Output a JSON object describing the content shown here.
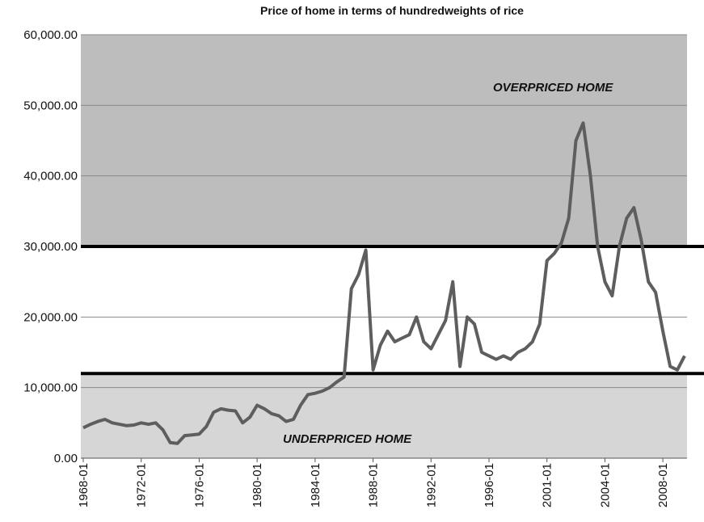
{
  "chart_data": {
    "type": "line",
    "title": "Price of home in terms of hundredweights of rice",
    "categories": [
      "1968-01",
      null,
      null,
      null,
      null,
      null,
      null,
      null,
      "1972-01",
      null,
      null,
      null,
      null,
      null,
      null,
      null,
      "1976-01",
      null,
      null,
      null,
      null,
      null,
      null,
      null,
      "1980-01",
      null,
      null,
      null,
      null,
      null,
      null,
      null,
      "1984-01",
      null,
      null,
      null,
      null,
      null,
      null,
      null,
      "1988-01",
      null,
      null,
      null,
      null,
      null,
      null,
      null,
      "1992-01",
      null,
      null,
      null,
      null,
      null,
      null,
      null,
      "1996-01",
      null,
      null,
      null,
      null,
      null,
      null,
      null,
      "2001-01",
      null,
      null,
      null,
      null,
      null,
      null,
      null,
      "2004-01",
      null,
      null,
      null,
      null,
      null,
      null,
      null,
      "2008-01",
      null,
      null,
      null
    ],
    "series": [
      {
        "color": "#5e5e5e",
        "values": [
          4300,
          4800,
          5200,
          5500,
          5000,
          4800,
          4600,
          4700,
          5000,
          4800,
          5000,
          4000,
          2200,
          2100,
          3200,
          3300,
          3400,
          4500,
          6500,
          7000,
          6800,
          6700,
          5000,
          5800,
          7500,
          7000,
          6300,
          6000,
          5200,
          5500,
          7500,
          9000,
          9200,
          9500,
          10000,
          10800,
          11500,
          24000,
          26000,
          29500,
          12500,
          16000,
          18000,
          16500,
          17000,
          17500,
          20000,
          16500,
          15500,
          17500,
          19500,
          25000,
          13000,
          20000,
          19000,
          15000,
          14500,
          14000,
          14500,
          14000,
          15000,
          15500,
          16500,
          19000,
          28000,
          29000,
          30500,
          34000,
          45000,
          47500,
          40000,
          30000,
          25000,
          23000,
          30000,
          34000,
          35500,
          31000,
          25000,
          23500,
          18000,
          13000,
          12500,
          14500
        ]
      }
    ],
    "ylim": [
      0,
      60000
    ],
    "yticks": [
      {
        "value": 0,
        "label": "0.00"
      },
      {
        "value": 10000,
        "label": "10,000.00"
      },
      {
        "value": 20000,
        "label": "20,000.00"
      },
      {
        "value": 30000,
        "label": "30,000.00"
      },
      {
        "value": 40000,
        "label": "40,000.00"
      },
      {
        "value": 50000,
        "label": "50,000.00"
      },
      {
        "value": 60000,
        "label": "60,000.00"
      }
    ],
    "grid": true,
    "reference_lines": [
      30000,
      12000
    ],
    "annotations": [
      {
        "text": "OVERPRICED HOME",
        "y": 52000
      },
      {
        "text": "UNDERPRICED HOME",
        "y": 2200
      }
    ]
  }
}
